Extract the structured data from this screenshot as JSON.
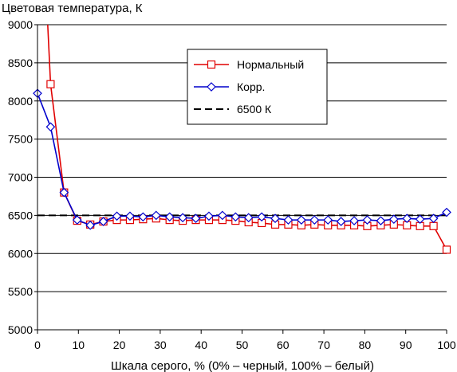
{
  "chart_data": {
    "type": "line",
    "title": "Цветовая температура, К",
    "xlabel": "Шкала серого, % (0% – черный, 100% – белый)",
    "ylabel": "",
    "xlim": [
      0,
      100
    ],
    "ylim": [
      5000,
      9000
    ],
    "x_ticks": [
      0,
      10,
      20,
      30,
      40,
      50,
      60,
      70,
      80,
      90,
      100
    ],
    "y_ticks": [
      5000,
      5500,
      6000,
      6500,
      7000,
      7500,
      8000,
      8500,
      9000
    ],
    "grid": "horizontal",
    "legend_position": "top-center",
    "series": [
      {
        "name": "Нормальный",
        "color": "#e00000",
        "marker": "square",
        "line_style": "solid",
        "clipped_start": {
          "x": 2.5,
          "y": 9000
        },
        "points": [
          [
            3.2,
            8220
          ],
          [
            6.5,
            6800
          ],
          [
            9.7,
            6430
          ],
          [
            12.9,
            6380
          ],
          [
            16.1,
            6420
          ],
          [
            19.4,
            6440
          ],
          [
            22.6,
            6440
          ],
          [
            25.8,
            6450
          ],
          [
            29.0,
            6460
          ],
          [
            32.3,
            6440
          ],
          [
            35.5,
            6430
          ],
          [
            38.7,
            6440
          ],
          [
            41.9,
            6440
          ],
          [
            45.2,
            6440
          ],
          [
            48.4,
            6430
          ],
          [
            51.6,
            6410
          ],
          [
            54.8,
            6400
          ],
          [
            58.1,
            6380
          ],
          [
            61.3,
            6380
          ],
          [
            64.5,
            6370
          ],
          [
            67.7,
            6380
          ],
          [
            71.0,
            6370
          ],
          [
            74.2,
            6370
          ],
          [
            77.4,
            6370
          ],
          [
            80.6,
            6360
          ],
          [
            83.9,
            6370
          ],
          [
            87.1,
            6380
          ],
          [
            90.3,
            6370
          ],
          [
            93.5,
            6360
          ],
          [
            96.8,
            6360
          ],
          [
            100,
            6050
          ]
        ]
      },
      {
        "name": "Корр.",
        "color": "#0000cc",
        "marker": "diamond",
        "line_style": "solid",
        "points": [
          [
            0,
            8100
          ],
          [
            3.2,
            7660
          ],
          [
            6.5,
            6800
          ],
          [
            9.7,
            6440
          ],
          [
            12.9,
            6370
          ],
          [
            16.1,
            6420
          ],
          [
            19.4,
            6490
          ],
          [
            22.6,
            6490
          ],
          [
            25.8,
            6480
          ],
          [
            29.0,
            6500
          ],
          [
            32.3,
            6480
          ],
          [
            35.5,
            6470
          ],
          [
            38.7,
            6460
          ],
          [
            41.9,
            6490
          ],
          [
            45.2,
            6500
          ],
          [
            48.4,
            6480
          ],
          [
            51.6,
            6470
          ],
          [
            54.8,
            6480
          ],
          [
            58.1,
            6460
          ],
          [
            61.3,
            6440
          ],
          [
            64.5,
            6440
          ],
          [
            67.7,
            6440
          ],
          [
            71.0,
            6440
          ],
          [
            74.2,
            6420
          ],
          [
            77.4,
            6430
          ],
          [
            80.6,
            6440
          ],
          [
            83.9,
            6430
          ],
          [
            87.1,
            6450
          ],
          [
            90.3,
            6460
          ],
          [
            93.5,
            6450
          ],
          [
            96.8,
            6460
          ],
          [
            100,
            6540
          ]
        ]
      },
      {
        "name": "6500 К",
        "color": "#000000",
        "marker": "none",
        "line_style": "dashed",
        "points": [
          [
            0,
            6500
          ],
          [
            100,
            6500
          ]
        ]
      }
    ]
  }
}
